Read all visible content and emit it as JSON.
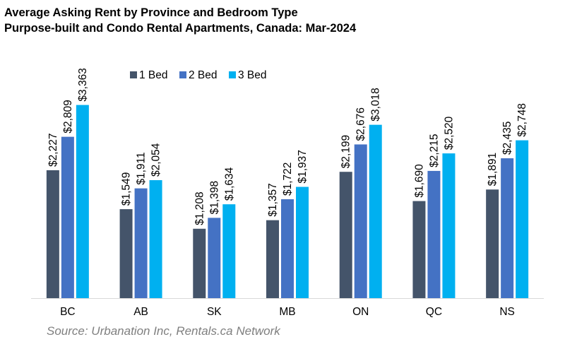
{
  "header": {
    "title_line1": "Average Asking Rent by Province and Bedroom Type",
    "title_line2": "Purpose-built and Condo Rental Apartments, Canada: Mar-2024"
  },
  "footer": {
    "source": "Source: Urbanation Inc, Rentals.ca Network"
  },
  "chart_data": {
    "type": "bar",
    "title": "Average Asking Rent by Province and Bedroom Type",
    "subtitle": "Purpose-built and Condo Rental Apartments, Canada: Mar-2024",
    "categories": [
      "BC",
      "AB",
      "SK",
      "MB",
      "ON",
      "QC",
      "NS"
    ],
    "series": [
      {
        "name": "1 Bed",
        "color": "#44546a",
        "values": [
          2227,
          1549,
          1208,
          1357,
          2199,
          1690,
          1891
        ],
        "labels": [
          "$2,227",
          "$1,549",
          "$1,208",
          "$1,357",
          "$2,199",
          "$1,690",
          "$1,891"
        ]
      },
      {
        "name": "2 Bed",
        "color": "#4472c4",
        "values": [
          2809,
          1911,
          1398,
          1722,
          2676,
          2215,
          2435
        ],
        "labels": [
          "$2,809",
          "$1,911",
          "$1,398",
          "$1,722",
          "$2,676",
          "$2,215",
          "$2,435"
        ]
      },
      {
        "name": "3 Bed",
        "color": "#00b0f0",
        "values": [
          3363,
          2054,
          1634,
          1937,
          3018,
          2520,
          2748
        ],
        "labels": [
          "$3,363",
          "$2,054",
          "$1,634",
          "$1,937",
          "$3,018",
          "$2,520",
          "$2,748"
        ]
      }
    ],
    "ylim": [
      0,
      3400
    ],
    "grid": false,
    "legend": "top-left"
  }
}
